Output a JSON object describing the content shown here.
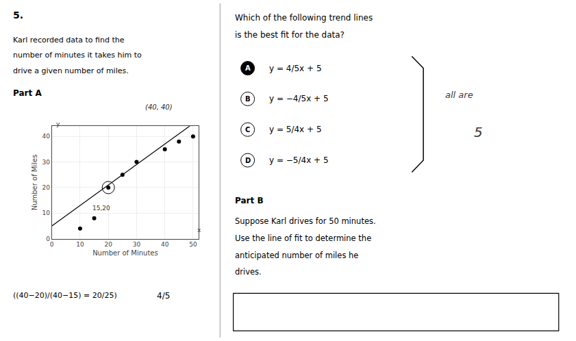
{
  "chart_data": {
    "type": "scatter",
    "xlabel": "Number of Minutes",
    "ylabel": "Number of Miles",
    "x": [
      10,
      15,
      20,
      25,
      30,
      40,
      45,
      50
    ],
    "values": [
      4,
      8,
      20,
      25,
      30,
      35,
      38,
      40
    ],
    "color": "black",
    "marker": "circle",
    "xlim": [
      0,
      52
    ],
    "ylim": [
      0,
      44
    ],
    "xticks": [
      0,
      10,
      20,
      30,
      40,
      50
    ],
    "yticks": [
      0,
      10,
      20,
      30,
      40
    ],
    "grid": true,
    "trend_line": {
      "type": "line",
      "x": [
        0,
        52
      ],
      "values": [
        5,
        46.6
      ],
      "color": "black"
    },
    "circled_point": {
      "x": 20,
      "y": 20
    },
    "annotations": [
      {
        "text": "15,20",
        "x": 14,
        "y": 10
      },
      {
        "text": "x",
        "x": 51,
        "y": 1.5
      },
      {
        "text": "y",
        "x": 1,
        "y": 43
      }
    ]
  },
  "page": {
    "problem_number": "5.",
    "left_text_lines": [
      "Karl recorded data to find the",
      "number of minutes it takes him to",
      "drive a given number of miles."
    ],
    "part_a_label": "Part A",
    "note_above_chart": "(40, 40)",
    "calculation": [
      "((40−20)/(40−15) = 20/25)",
      "4/5"
    ],
    "question_lines": [
      "Which of the following trend lines",
      "is the best fit for the data?"
    ],
    "options": [
      {
        "label": "A",
        "text": "y = 4/5x + 5",
        "filled": true
      },
      {
        "label": "B",
        "text": "y = −4/5x + 5",
        "filled": false
      },
      {
        "label": "C",
        "text": "y = 5/4x + 5",
        "filled": false
      },
      {
        "label": "D",
        "text": "y = −5/4x + 5",
        "filled": false
      }
    ],
    "side_notes": [
      "all are",
      "5"
    ],
    "part_b_label": "Part B",
    "part_b_text_lines": [
      "Suppose Karl drives for 50 minutes.",
      "Use the line of fit to determine the",
      "anticipated number of miles he",
      "drives."
    ]
  }
}
